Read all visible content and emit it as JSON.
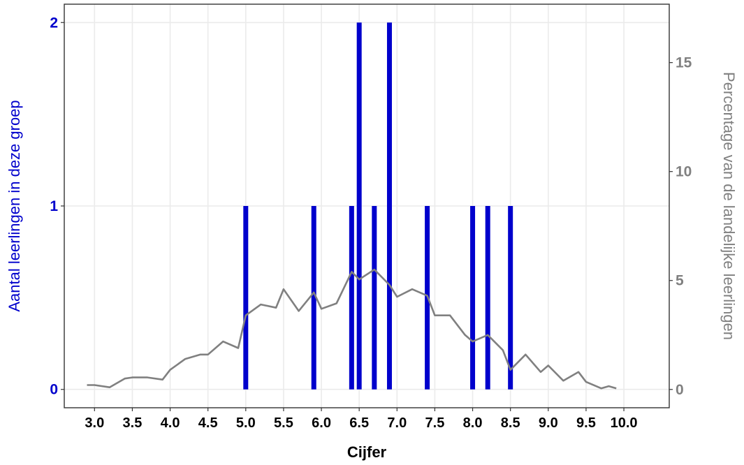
{
  "chart_data": {
    "type": "bar",
    "xlabel": "Cijfer",
    "ylabel_left": "Aantal leerlingen in deze groep",
    "ylabel_right": "Percentage van de landelijke leerlingen",
    "xlim": [
      2.6,
      10.6
    ],
    "x_ticks": [
      "3.0",
      "3.5",
      "4.0",
      "4.5",
      "5.0",
      "5.5",
      "6.0",
      "6.5",
      "7.0",
      "7.5",
      "8.0",
      "8.5",
      "9.0",
      "9.5",
      "10.0"
    ],
    "y_left_ticks": [
      "0",
      "1",
      "2"
    ],
    "y_left_range": [
      -0.1,
      2.1
    ],
    "y_right_ticks": [
      "0",
      "5",
      "10",
      "15"
    ],
    "y_right_range": [
      -0.84,
      17.68
    ],
    "grid": true,
    "colors": {
      "bars": "#0000cc",
      "line": "#808080",
      "left_axis_text": "#0000cc",
      "right_axis_text": "#808080",
      "grid": "#ebebeb",
      "frame": "#333333"
    },
    "series": [
      {
        "type": "bar",
        "axis": "left",
        "x": [
          5.0,
          5.9,
          6.4,
          6.5,
          6.7,
          6.9,
          7.4,
          8.0,
          8.2,
          8.5
        ],
        "values": [
          1,
          1,
          1,
          2,
          1,
          2,
          1,
          1,
          1,
          1
        ]
      },
      {
        "type": "line",
        "axis": "right",
        "x": [
          2.9,
          3.0,
          3.2,
          3.4,
          3.5,
          3.7,
          3.9,
          4.0,
          4.2,
          4.4,
          4.5,
          4.7,
          4.9,
          5.0,
          5.2,
          5.4,
          5.5,
          5.7,
          5.9,
          6.0,
          6.2,
          6.4,
          6.5,
          6.7,
          6.9,
          7.0,
          7.2,
          7.4,
          7.5,
          7.7,
          7.9,
          8.0,
          8.2,
          8.4,
          8.5,
          8.7,
          8.9,
          9.0,
          9.2,
          9.4,
          9.5,
          9.7,
          9.8,
          9.9
        ],
        "values": [
          0.2,
          0.2,
          0.1,
          0.5,
          0.55,
          0.55,
          0.45,
          0.9,
          1.4,
          1.6,
          1.6,
          2.2,
          1.9,
          3.4,
          3.9,
          3.75,
          4.6,
          3.6,
          4.45,
          3.7,
          3.95,
          5.4,
          5.05,
          5.5,
          4.8,
          4.25,
          4.6,
          4.3,
          3.4,
          3.4,
          2.5,
          2.2,
          2.5,
          1.8,
          0.9,
          1.6,
          0.8,
          1.1,
          0.4,
          0.8,
          0.35,
          0.05,
          0.15,
          0.05
        ]
      }
    ]
  }
}
